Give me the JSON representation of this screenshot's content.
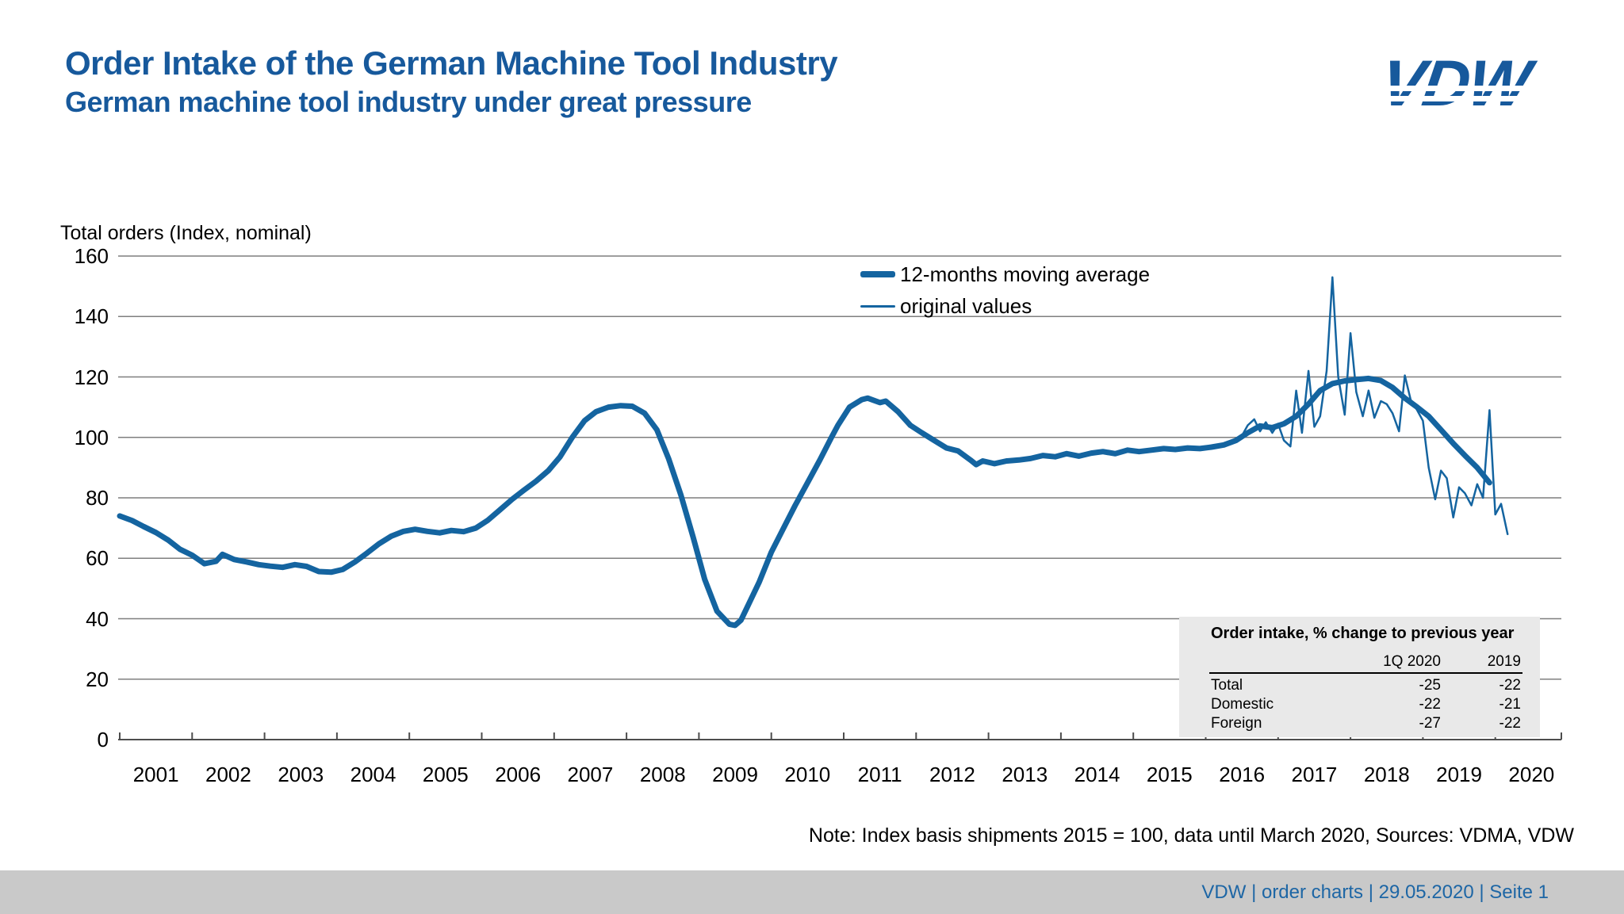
{
  "header": {
    "title": "Order Intake of the German Machine Tool Industry",
    "subtitle": "German machine tool industry under great pressure",
    "logo_text": "VDW"
  },
  "colors": {
    "brand_blue": "#17599c",
    "line_blue": "#1464a0",
    "grid_gray": "#7f7f7f",
    "axis_gray": "#4d4d4d",
    "table_bg": "#e9e9e9",
    "footer_bg": "#c9c9c9",
    "footer_text": "#1d66a5"
  },
  "legend": {
    "items": [
      "12-months moving average",
      "original values"
    ]
  },
  "inset_table": {
    "title": "Order intake, % change to previous year",
    "col_headers": [
      "1Q 2020",
      "2019"
    ],
    "rows": [
      {
        "label": "Total",
        "values": [
          "-25",
          "-22"
        ]
      },
      {
        "label": "Domestic",
        "values": [
          "-22",
          "-21"
        ]
      },
      {
        "label": "Foreign",
        "values": [
          "-27",
          "-22"
        ]
      }
    ]
  },
  "note": "Note: Index basis shipments 2015 = 100, data until March 2020, Sources: VDMA, VDW",
  "footer": {
    "text": "VDW  |  order charts  |   29.05.2020     |  Seite  1"
  },
  "chart_data": {
    "type": "line",
    "title": "Total orders (Index, nominal)",
    "grid": true,
    "legend_position": "top-right",
    "x_axis": {
      "start": 2001,
      "end": 2020.92,
      "year_labels": [
        "2001",
        "2002",
        "2003",
        "2004",
        "2005",
        "2006",
        "2007",
        "2008",
        "2009",
        "2010",
        "2011",
        "2012",
        "2013",
        "2014",
        "2015",
        "2016",
        "2017",
        "2018",
        "2019",
        "2020"
      ]
    },
    "y_axis": {
      "min": 0,
      "max": 160,
      "step": 20
    },
    "series": [
      {
        "name": "12-months moving average",
        "style": "thick",
        "points": [
          [
            2001.0,
            74
          ],
          [
            2001.17,
            72.5
          ],
          [
            2001.33,
            70.5
          ],
          [
            2001.5,
            68.5
          ],
          [
            2001.67,
            66
          ],
          [
            2001.83,
            63
          ],
          [
            2002.0,
            61
          ],
          [
            2002.17,
            58.2
          ],
          [
            2002.33,
            59
          ],
          [
            2002.42,
            61.3
          ],
          [
            2002.58,
            59.6
          ],
          [
            2002.75,
            58.8
          ],
          [
            2002.92,
            57.9
          ],
          [
            2003.08,
            57.4
          ],
          [
            2003.25,
            57
          ],
          [
            2003.42,
            57.9
          ],
          [
            2003.58,
            57.3
          ],
          [
            2003.75,
            55.6
          ],
          [
            2003.92,
            55.4
          ],
          [
            2004.08,
            56.3
          ],
          [
            2004.25,
            58.8
          ],
          [
            2004.42,
            61.8
          ],
          [
            2004.58,
            64.8
          ],
          [
            2004.75,
            67.3
          ],
          [
            2004.92,
            68.9
          ],
          [
            2005.08,
            69.6
          ],
          [
            2005.25,
            68.9
          ],
          [
            2005.42,
            68.4
          ],
          [
            2005.58,
            69.2
          ],
          [
            2005.75,
            68.8
          ],
          [
            2005.92,
            70
          ],
          [
            2006.08,
            72.5
          ],
          [
            2006.25,
            76
          ],
          [
            2006.42,
            79.5
          ],
          [
            2006.58,
            82.5
          ],
          [
            2006.75,
            85.5
          ],
          [
            2006.92,
            89
          ],
          [
            2007.08,
            93.5
          ],
          [
            2007.25,
            100
          ],
          [
            2007.42,
            105.5
          ],
          [
            2007.58,
            108.5
          ],
          [
            2007.75,
            110
          ],
          [
            2007.92,
            110.5
          ],
          [
            2008.08,
            110.3
          ],
          [
            2008.25,
            108
          ],
          [
            2008.42,
            102.5
          ],
          [
            2008.58,
            93
          ],
          [
            2008.75,
            81
          ],
          [
            2008.92,
            67
          ],
          [
            2009.08,
            53
          ],
          [
            2009.25,
            42.5
          ],
          [
            2009.42,
            38.2
          ],
          [
            2009.5,
            37.8
          ],
          [
            2009.58,
            39.5
          ],
          [
            2009.67,
            44
          ],
          [
            2009.83,
            52
          ],
          [
            2010.0,
            62
          ],
          [
            2010.17,
            70
          ],
          [
            2010.33,
            77.5
          ],
          [
            2010.5,
            85
          ],
          [
            2010.67,
            92.5
          ],
          [
            2010.83,
            100
          ],
          [
            2010.92,
            104
          ],
          [
            2011.08,
            110
          ],
          [
            2011.25,
            112.5
          ],
          [
            2011.33,
            113
          ],
          [
            2011.5,
            111.5
          ],
          [
            2011.58,
            112
          ],
          [
            2011.75,
            108.5
          ],
          [
            2011.92,
            104
          ],
          [
            2012.08,
            101.5
          ],
          [
            2012.25,
            99
          ],
          [
            2012.42,
            96.5
          ],
          [
            2012.58,
            95.5
          ],
          [
            2012.75,
            92.5
          ],
          [
            2012.83,
            91
          ],
          [
            2012.92,
            92.2
          ],
          [
            2013.08,
            91.3
          ],
          [
            2013.25,
            92.2
          ],
          [
            2013.42,
            92.5
          ],
          [
            2013.58,
            93
          ],
          [
            2013.75,
            94
          ],
          [
            2013.92,
            93.6
          ],
          [
            2014.08,
            94.6
          ],
          [
            2014.25,
            93.8
          ],
          [
            2014.42,
            94.8
          ],
          [
            2014.58,
            95.3
          ],
          [
            2014.75,
            94.6
          ],
          [
            2014.92,
            95.8
          ],
          [
            2015.08,
            95.3
          ],
          [
            2015.25,
            95.8
          ],
          [
            2015.42,
            96.3
          ],
          [
            2015.58,
            96
          ],
          [
            2015.75,
            96.5
          ],
          [
            2015.92,
            96.3
          ],
          [
            2016.08,
            96.8
          ],
          [
            2016.25,
            97.5
          ],
          [
            2016.42,
            99
          ],
          [
            2016.58,
            101.5
          ],
          [
            2016.75,
            103.8
          ],
          [
            2016.92,
            103.2
          ],
          [
            2017.08,
            104.5
          ],
          [
            2017.25,
            107
          ],
          [
            2017.42,
            111
          ],
          [
            2017.58,
            115.5
          ],
          [
            2017.75,
            117.8
          ],
          [
            2017.92,
            118.7
          ],
          [
            2018.08,
            119.1
          ],
          [
            2018.25,
            119.5
          ],
          [
            2018.42,
            118.8
          ],
          [
            2018.58,
            116.5
          ],
          [
            2018.75,
            113
          ],
          [
            2018.92,
            110
          ],
          [
            2019.08,
            107
          ],
          [
            2019.25,
            102.5
          ],
          [
            2019.42,
            98
          ],
          [
            2019.58,
            94
          ],
          [
            2019.75,
            90
          ],
          [
            2019.92,
            85
          ]
        ]
      },
      {
        "name": "original values",
        "style": "thin",
        "points": [
          [
            2016.5,
            100.5
          ],
          [
            2016.58,
            104
          ],
          [
            2016.67,
            106
          ],
          [
            2016.75,
            102
          ],
          [
            2016.83,
            105
          ],
          [
            2016.92,
            101.5
          ],
          [
            2017.0,
            104.5
          ],
          [
            2017.08,
            99
          ],
          [
            2017.17,
            97
          ],
          [
            2017.25,
            115.5
          ],
          [
            2017.33,
            101.5
          ],
          [
            2017.42,
            122
          ],
          [
            2017.5,
            103.5
          ],
          [
            2017.58,
            107
          ],
          [
            2017.67,
            122
          ],
          [
            2017.75,
            153
          ],
          [
            2017.83,
            120
          ],
          [
            2017.92,
            107.5
          ],
          [
            2018.0,
            134.5
          ],
          [
            2018.08,
            115
          ],
          [
            2018.17,
            107
          ],
          [
            2018.25,
            115.5
          ],
          [
            2018.33,
            106.5
          ],
          [
            2018.42,
            112
          ],
          [
            2018.5,
            111
          ],
          [
            2018.58,
            108
          ],
          [
            2018.67,
            102
          ],
          [
            2018.75,
            120.5
          ],
          [
            2018.83,
            112.5
          ],
          [
            2018.92,
            109
          ],
          [
            2019.0,
            105.5
          ],
          [
            2019.08,
            90
          ],
          [
            2019.17,
            79.5
          ],
          [
            2019.25,
            89
          ],
          [
            2019.33,
            86.5
          ],
          [
            2019.42,
            73.5
          ],
          [
            2019.5,
            83.5
          ],
          [
            2019.58,
            81.5
          ],
          [
            2019.67,
            77.5
          ],
          [
            2019.75,
            84.5
          ],
          [
            2019.83,
            80
          ],
          [
            2019.92,
            109
          ],
          [
            2020.0,
            74.5
          ],
          [
            2020.08,
            78
          ],
          [
            2020.17,
            68
          ]
        ]
      }
    ]
  }
}
